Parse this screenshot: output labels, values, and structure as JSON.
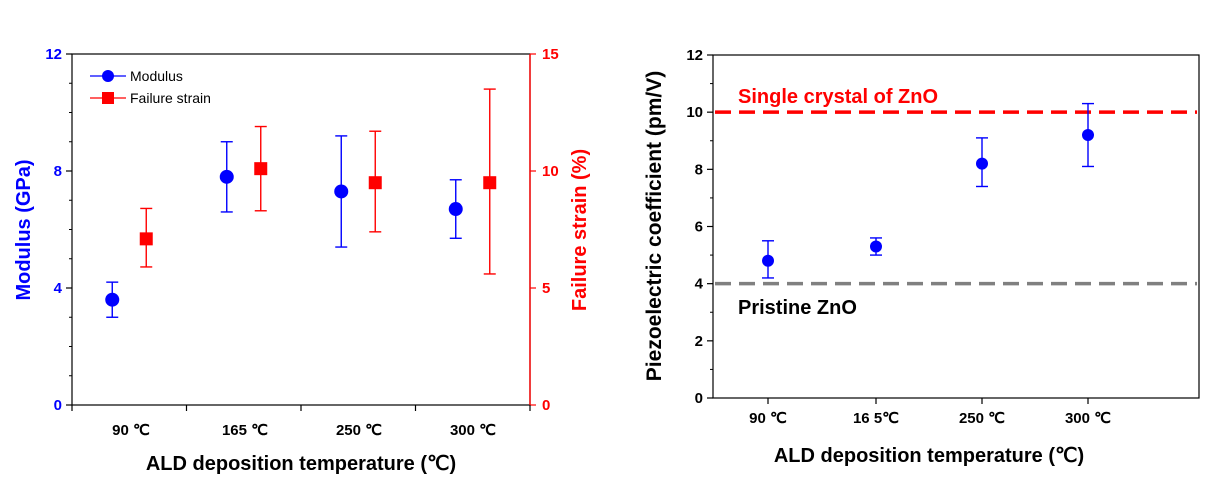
{
  "chart_data": [
    {
      "type": "scatter",
      "xlabel": "ALD deposition temperature (℃)",
      "categories": [
        "90 ℃",
        "165 ℃",
        "250 ℃",
        "300 ℃"
      ],
      "y_left": {
        "label": "Modulus (GPa)",
        "ylim": [
          0,
          12
        ],
        "ticks": [
          "0",
          "4",
          "8",
          "12"
        ],
        "color": "#0000ff"
      },
      "y_right": {
        "label": "Failure strain (%)",
        "ylim": [
          0,
          15
        ],
        "ticks": [
          "0",
          "5",
          "10",
          "15"
        ],
        "color": "#ff0000"
      },
      "legend_position": "top-left",
      "series": [
        {
          "name": "Modulus",
          "axis": "left",
          "marker": "circle",
          "color": "#0000ff",
          "values": [
            3.6,
            7.8,
            7.3,
            6.7
          ],
          "err_high": [
            4.2,
            9.0,
            9.2,
            7.7
          ],
          "err_low": [
            3.0,
            6.6,
            5.4,
            5.7
          ]
        },
        {
          "name": "Failure strain",
          "axis": "right",
          "marker": "square",
          "color": "#ff0000",
          "values": [
            7.1,
            10.1,
            9.5,
            9.5
          ],
          "err_high": [
            8.4,
            11.9,
            11.7,
            13.5
          ],
          "err_low": [
            5.9,
            8.3,
            7.4,
            5.6
          ]
        }
      ]
    },
    {
      "type": "scatter",
      "xlabel": "ALD deposition temperature (℃)",
      "ylabel": "Piezoelectric coefficient (pm/V)",
      "categories": [
        "90 ℃",
        "16 5℃",
        "250 ℃",
        "300 ℃"
      ],
      "ylim": [
        0,
        12
      ],
      "ticks": [
        "0",
        "2",
        "4",
        "6",
        "8",
        "10",
        "12"
      ],
      "series": [
        {
          "name": "Piezoelectric coefficient",
          "marker": "circle",
          "color": "#0000ff",
          "values": [
            4.8,
            5.3,
            8.2,
            9.2
          ],
          "err_high": [
            5.5,
            5.6,
            9.1,
            10.3
          ],
          "err_low": [
            4.2,
            5.0,
            7.4,
            8.1
          ]
        }
      ],
      "reference_lines": [
        {
          "label": "Single crystal of ZnO",
          "value": 10,
          "color": "#ff0000"
        },
        {
          "label": "Pristine ZnO",
          "value": 4,
          "color": "#808080"
        }
      ]
    }
  ]
}
